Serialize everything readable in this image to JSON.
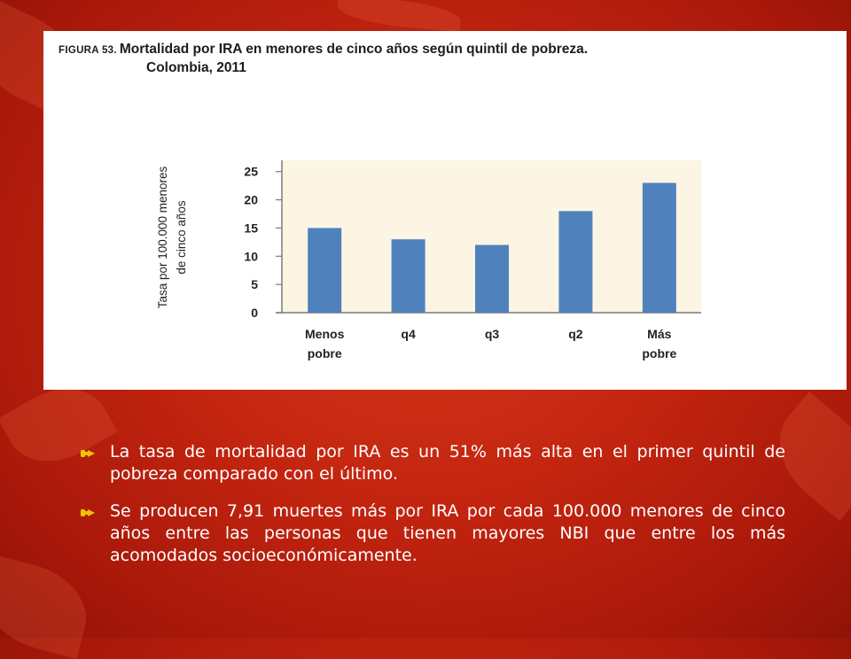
{
  "figure": {
    "label": "FIGURA 53.",
    "title": "Mortalidad por IRA en menores de cinco años según quintil de pobreza.",
    "subtitle": "Colombia, 2011"
  },
  "chart_data": {
    "type": "bar",
    "ylabel_line1": "Tasa por 100.000 menores",
    "ylabel_line2": "de cinco años",
    "categories": [
      {
        "line1": "Menos",
        "line2": "pobre"
      },
      {
        "line1": "q4",
        "line2": ""
      },
      {
        "line1": "q3",
        "line2": ""
      },
      {
        "line1": "q2",
        "line2": ""
      },
      {
        "line1": "Más",
        "line2": "pobre"
      }
    ],
    "values": [
      15,
      13,
      12,
      18,
      23
    ],
    "yticks": [
      "0",
      "5",
      "10",
      "15",
      "20",
      "25"
    ],
    "ylim": [
      0,
      27
    ],
    "bar_color": "#4f81bd",
    "plot_background": "#fdf5e4",
    "grid": false
  },
  "bullets": [
    "La tasa de mortalidad por IRA es un 51% más alta en el primer quintil de pobreza comparado con el último.",
    "Se producen 7,91 muertes más por IRA por cada 100.000 menores de cinco años entre las personas que tienen mayores NBI que entre los más acomodados socioeconómicamente."
  ],
  "bullet_icon": "hand-pointing-icon",
  "bullet_color": "#f2c300"
}
